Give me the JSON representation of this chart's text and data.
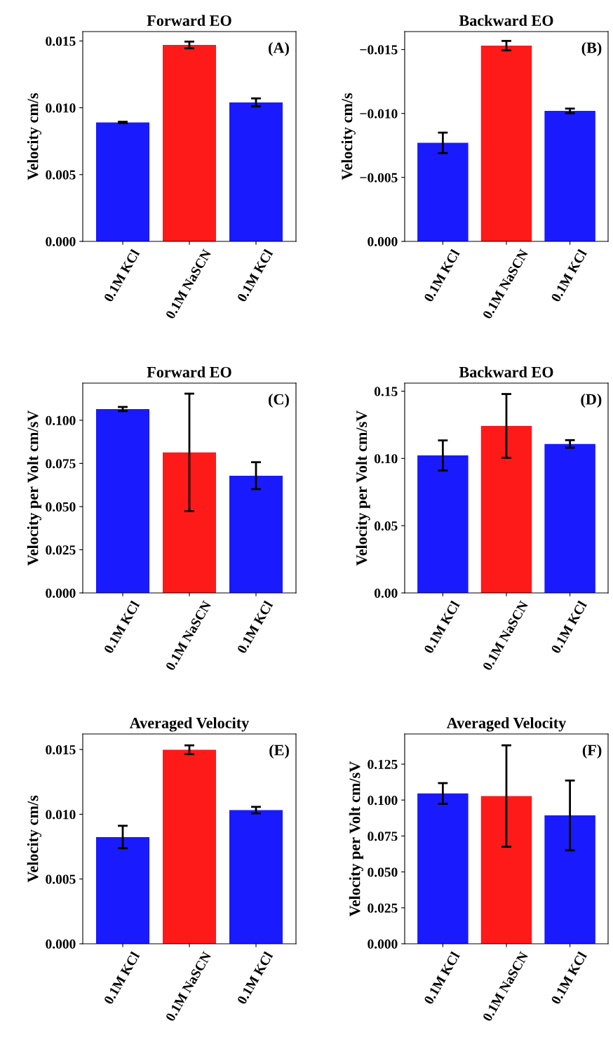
{
  "chart_data": [
    {
      "type": "bar",
      "title": "Forward EO",
      "ylabel": "Velocity cm/s",
      "annotations": [
        "(A)"
      ],
      "categories": [
        "0.1M KCl",
        "0.1M NaSCN",
        "0.1M KCl"
      ],
      "values": [
        0.0089,
        0.0147,
        0.0104
      ],
      "colors": [
        "#1a1aff",
        "#ff1a1a",
        "#1a1aff"
      ],
      "errors": [
        5e-05,
        0.00025,
        0.0003
      ],
      "ylim": [
        0,
        0.0157
      ],
      "yticks": [
        {
          "value": 0,
          "label": "0.000"
        },
        {
          "value": 0.005,
          "label": "0.005"
        },
        {
          "value": 0.01,
          "label": "0.010"
        },
        {
          "value": 0.015,
          "label": "0.015"
        }
      ]
    },
    {
      "type": "bar",
      "title": "Backward EO",
      "ylabel": "Velocity cm/s",
      "annotations": [
        "(B)"
      ],
      "categories": [
        "0.1M KCl",
        "0.1M NaSCN",
        "0.1M KCl"
      ],
      "values": [
        -0.0077,
        -0.0153,
        -0.0102
      ],
      "colors": [
        "#1a1aff",
        "#ff1a1a",
        "#1a1aff"
      ],
      "errors": [
        0.0008,
        0.00037,
        0.00018
      ],
      "ylim": [
        0,
        -0.0164
      ],
      "yticks": [
        {
          "value": 0,
          "label": "0.000"
        },
        {
          "value": -0.005,
          "label": "−0.005"
        },
        {
          "value": -0.01,
          "label": "−0.010"
        },
        {
          "value": -0.015,
          "label": "−0.015"
        }
      ]
    },
    {
      "type": "bar",
      "title": "Forward EO",
      "ylabel": "Velocity per Volt cm/sV",
      "annotations": [
        "(C)"
      ],
      "categories": [
        "0.1M KCl",
        "0.1M NaSCN",
        "0.1M KCl"
      ],
      "values": [
        0.1065,
        0.0814,
        0.0679
      ],
      "colors": [
        "#1a1aff",
        "#ff1a1a",
        "#1a1aff"
      ],
      "errors": [
        0.0012,
        0.034,
        0.0078
      ],
      "ylim": [
        0,
        0.1215
      ],
      "yticks": [
        {
          "value": 0,
          "label": "0.000"
        },
        {
          "value": 0.025,
          "label": "0.025"
        },
        {
          "value": 0.05,
          "label": "0.050"
        },
        {
          "value": 0.075,
          "label": "0.075"
        },
        {
          "value": 0.1,
          "label": "0.100"
        }
      ]
    },
    {
      "type": "bar",
      "title": "Backward EO",
      "ylabel": "Velocity per Volt cm/sV",
      "annotations": [
        "(D)"
      ],
      "categories": [
        "0.1M KCl",
        "0.1M NaSCN",
        "0.1M KCl"
      ],
      "values": [
        0.1022,
        0.1242,
        0.1108
      ],
      "colors": [
        "#1a1aff",
        "#ff1a1a",
        "#1a1aff"
      ],
      "errors": [
        0.0112,
        0.0237,
        0.0028
      ],
      "ylim": [
        0,
        0.156
      ],
      "yticks": [
        {
          "value": 0,
          "label": "0.00"
        },
        {
          "value": 0.05,
          "label": "0.05"
        },
        {
          "value": 0.1,
          "label": "0.10"
        },
        {
          "value": 0.15,
          "label": "0.15"
        }
      ]
    },
    {
      "type": "bar",
      "title": "Averaged Velocity",
      "ylabel": "Velocity cm/s",
      "annotations": [
        "(E)"
      ],
      "categories": [
        "0.1M KCl",
        "0.1M NaSCN",
        "0.1M KCl"
      ],
      "values": [
        0.00824,
        0.01498,
        0.01032
      ],
      "colors": [
        "#1a1aff",
        "#ff1a1a",
        "#1a1aff"
      ],
      "errors": [
        0.00087,
        0.00034,
        0.00025
      ],
      "ylim": [
        0,
        0.0162
      ],
      "yticks": [
        {
          "value": 0,
          "label": "0.000"
        },
        {
          "value": 0.005,
          "label": "0.005"
        },
        {
          "value": 0.01,
          "label": "0.010"
        },
        {
          "value": 0.015,
          "label": "0.015"
        }
      ]
    },
    {
      "type": "bar",
      "title": "Averaged Velocity",
      "ylabel": "Velocity per Volt cm/sV",
      "annotations": [
        "(F)"
      ],
      "categories": [
        "0.1M KCl",
        "0.1M NaSCN",
        "0.1M KCl"
      ],
      "values": [
        0.1046,
        0.1028,
        0.0893
      ],
      "colors": [
        "#1a1aff",
        "#ff1a1a",
        "#1a1aff"
      ],
      "errors": [
        0.0072,
        0.0353,
        0.0243
      ],
      "ylim": [
        0,
        0.146
      ],
      "yticks": [
        {
          "value": 0,
          "label": "0.000"
        },
        {
          "value": 0.025,
          "label": "0.025"
        },
        {
          "value": 0.05,
          "label": "0.050"
        },
        {
          "value": 0.075,
          "label": "0.075"
        },
        {
          "value": 0.1,
          "label": "0.100"
        },
        {
          "value": 0.125,
          "label": "0.125"
        }
      ]
    }
  ]
}
